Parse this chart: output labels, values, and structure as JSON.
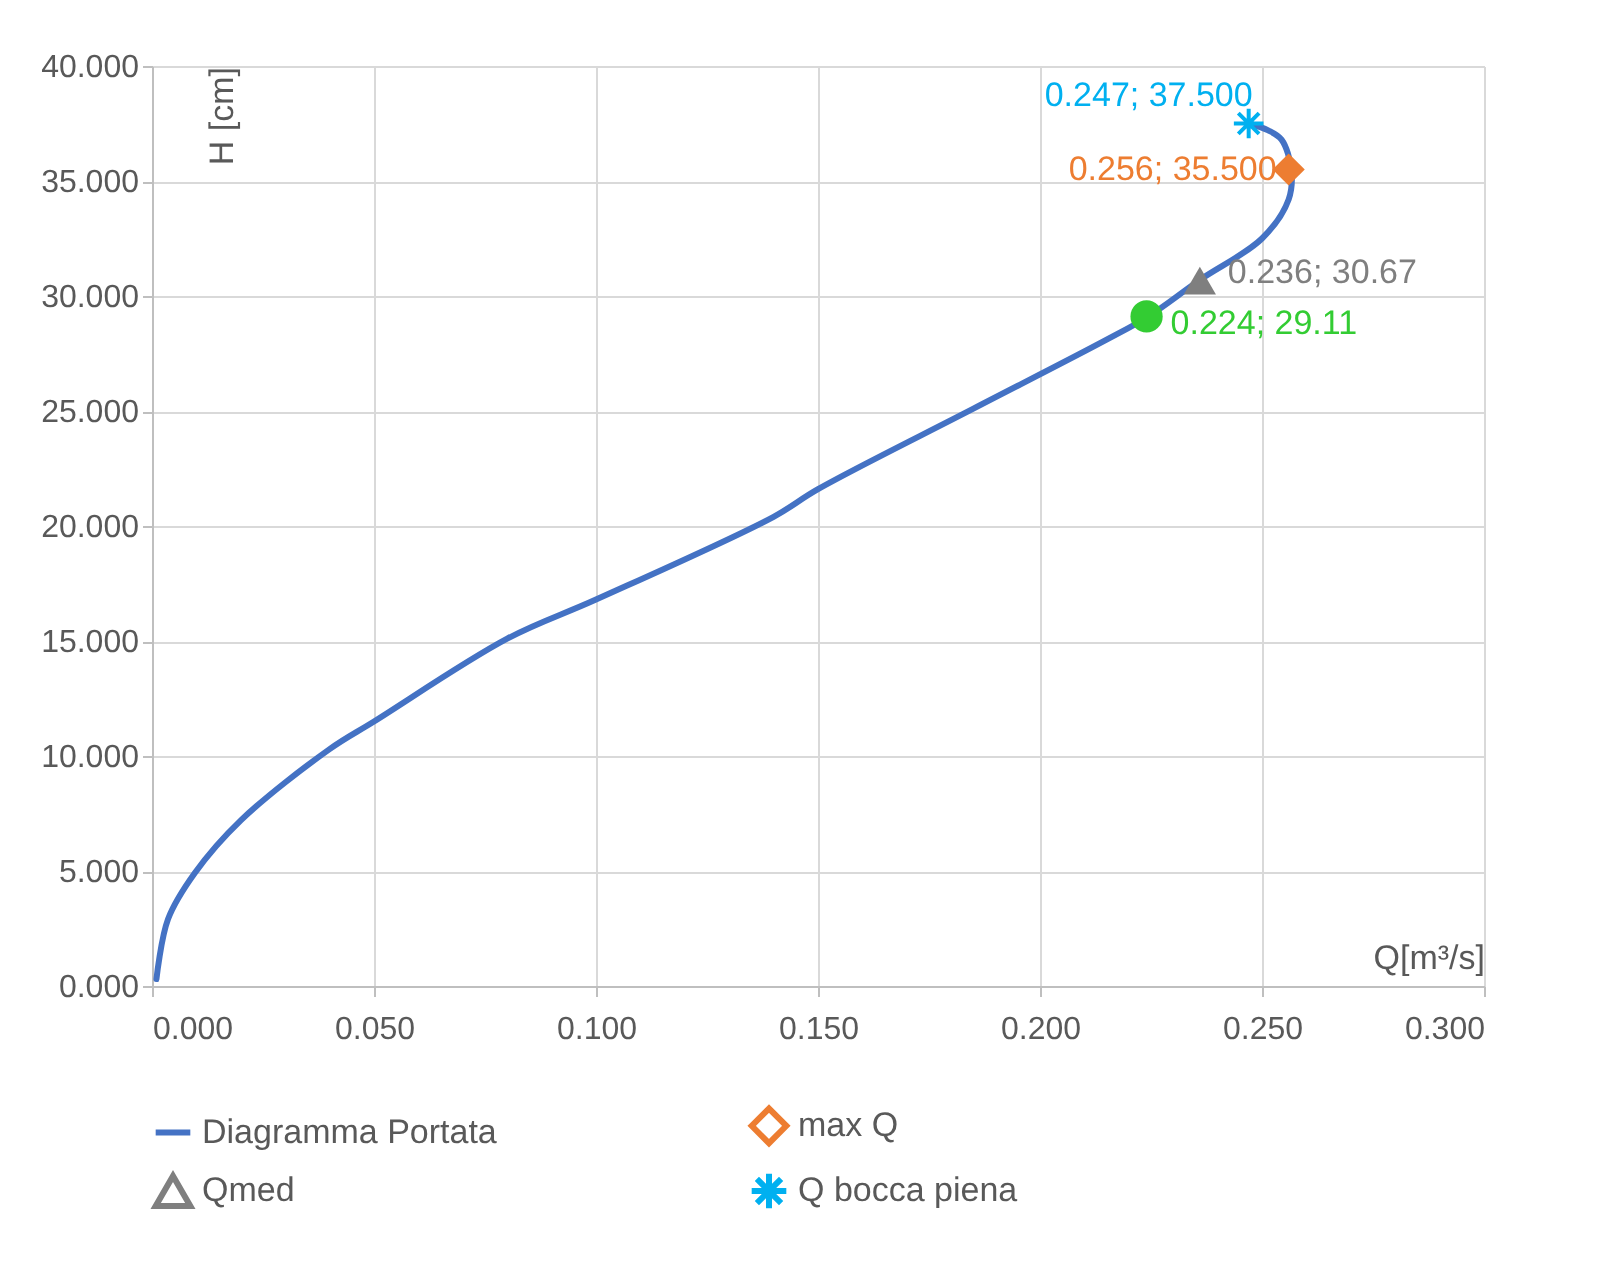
{
  "chart_data": {
    "type": "line",
    "xlabel": "Q[m³/s]",
    "ylabel": "H [cm]",
    "xlim": [
      0,
      0.3
    ],
    "ylim": [
      0,
      40
    ],
    "xticks": [
      {
        "value": 0,
        "label": "0.000"
      },
      {
        "value": 0.05,
        "label": "0.050"
      },
      {
        "value": 0.1,
        "label": "0.100"
      },
      {
        "value": 0.15,
        "label": "0.150"
      },
      {
        "value": 0.2,
        "label": "0.200"
      },
      {
        "value": 0.25,
        "label": "0.250"
      },
      {
        "value": 0.3,
        "label": "0.300"
      }
    ],
    "yticks": [
      {
        "value": 0,
        "label": "0.000"
      },
      {
        "value": 5,
        "label": "5.000"
      },
      {
        "value": 10,
        "label": "10.000"
      },
      {
        "value": 15,
        "label": "15.000"
      },
      {
        "value": 20,
        "label": "20.000"
      },
      {
        "value": 25,
        "label": "25.000"
      },
      {
        "value": 30,
        "label": "30.000"
      },
      {
        "value": 35,
        "label": "35.000"
      },
      {
        "value": 40,
        "label": "40.000"
      }
    ],
    "grid": true,
    "legend": "bottom",
    "series": [
      {
        "name": "Diagramma Portata",
        "color": "#4472c4",
        "marker": "none",
        "x": [
          0.001,
          0.0036,
          0.0096,
          0.02,
          0.04,
          0.05,
          0.08,
          0.1,
          0.14,
          0.15,
          0.185,
          0.215,
          0.2243,
          0.236,
          0.25,
          0.256,
          0.2566,
          0.2544,
          0.2514,
          0.247
        ],
        "values": [
          0.3,
          2.9,
          4.9,
          7.2,
          10.3,
          11.5,
          15.1,
          16.8,
          20.4,
          21.6,
          25.1,
          28.1,
          29.1,
          30.7,
          32.5,
          34.2,
          35.5,
          36.8,
          37.2,
          37.5
        ]
      },
      {
        "name": "max Q",
        "type": "scatter",
        "color": "#ed7d31",
        "marker": "diamond",
        "x": [
          0.256
        ],
        "values": [
          35.5
        ],
        "value_labels": [
          "0.256; 35.500"
        ]
      },
      {
        "name": "Qmed",
        "type": "scatter",
        "color": "#7f7f7f",
        "marker": "triangle",
        "x": [
          0.236
        ],
        "values": [
          30.67
        ],
        "value_labels": [
          "0.236; 30.67"
        ]
      },
      {
        "name": "Q bocca piena",
        "type": "scatter",
        "color": "#00b0f0",
        "marker": "cross",
        "x": [
          0.247
        ],
        "values": [
          37.5
        ],
        "value_labels": [
          "0.247; 37.500"
        ]
      },
      {
        "type": "scatter",
        "color": "#33cc33",
        "marker": "circle",
        "x": [
          0.224
        ],
        "values": [
          29.11
        ],
        "value_labels": [
          "0.224; 29.11"
        ]
      }
    ]
  }
}
